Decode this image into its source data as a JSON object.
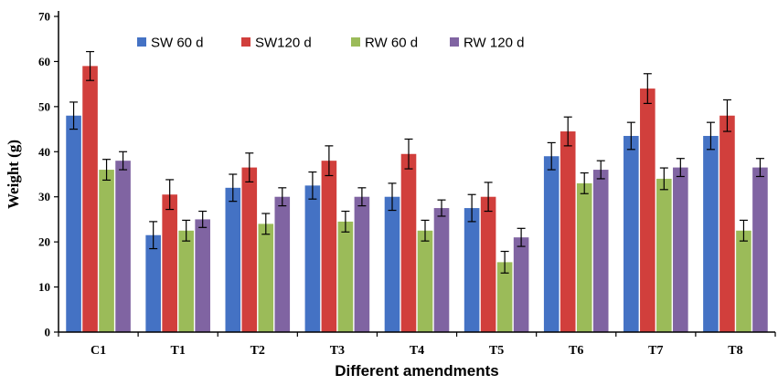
{
  "chart_data": {
    "type": "bar",
    "title": "",
    "xlabel": "Different amendments",
    "ylabel": "Weight  (g)",
    "ylim": [
      0,
      70
    ],
    "yticks": [
      0,
      10,
      20,
      30,
      40,
      50,
      60,
      70
    ],
    "grid": false,
    "legend_position": "top-left",
    "categories": [
      "C1",
      "T1",
      "T2",
      "T3",
      "T4",
      "T5",
      "T6",
      "T7",
      "T8"
    ],
    "series": [
      {
        "name": "SW 60 d",
        "color": "#4472C4",
        "values": [
          48,
          21.5,
          32,
          32.5,
          30,
          27.5,
          39,
          43.5,
          43.5
        ],
        "errors": [
          3,
          3,
          3,
          3,
          3,
          3,
          3,
          3,
          3
        ]
      },
      {
        "name": "SW120 d",
        "color": "#D13F3C",
        "values": [
          59,
          30.5,
          36.5,
          38,
          39.5,
          30,
          44.5,
          54,
          48
        ],
        "errors": [
          3.2,
          3.3,
          3.2,
          3.3,
          3.3,
          3.2,
          3.2,
          3.3,
          3.5
        ]
      },
      {
        "name": "RW 60 d",
        "color": "#9BBB59",
        "values": [
          36,
          22.5,
          24,
          24.5,
          22.5,
          15.5,
          33,
          34,
          22.5
        ],
        "errors": [
          2.3,
          2.3,
          2.3,
          2.3,
          2.3,
          2.4,
          2.3,
          2.4,
          2.3
        ]
      },
      {
        "name": "RW 120 d",
        "color": "#8064A2",
        "values": [
          38,
          25,
          30,
          30,
          27.5,
          21,
          36,
          36.5,
          36.5
        ],
        "errors": [
          2,
          1.8,
          2,
          2,
          1.8,
          2,
          2,
          2,
          2
        ]
      }
    ]
  }
}
